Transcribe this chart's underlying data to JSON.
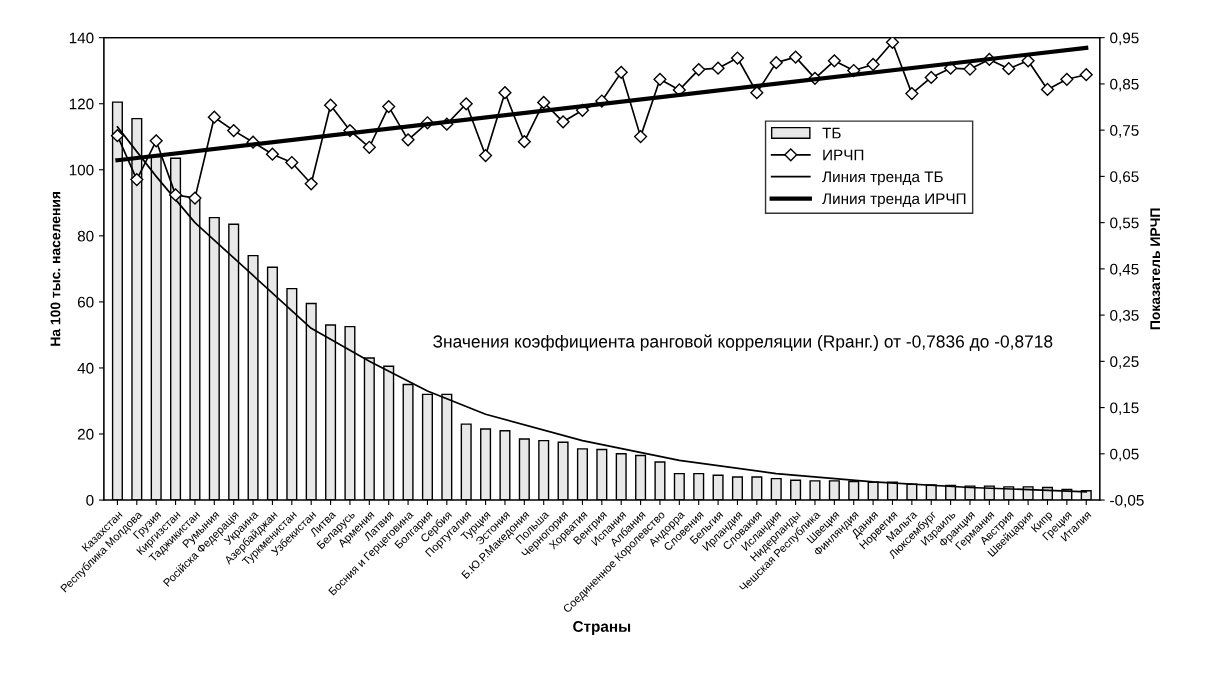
{
  "chart_data": {
    "type": "bar",
    "xlabel": "Страны",
    "ylabel": "На 100 тыс. населения",
    "y2label": "Показатель ИРЧП",
    "categories": [
      "Казахстан",
      "Республика Молдова",
      "Грузия",
      "Киргизстан",
      "Таджикистан",
      "Румыния",
      "Російска Федерація",
      "Украина",
      "Азербайджан",
      "Туркменистан",
      "Узбекистан",
      "Литва",
      "Беларусь",
      "Армения",
      "Латвия",
      "Босния и Герцеговина",
      "Болгария",
      "Сербия",
      "Португалия",
      "Турция",
      "Эстония",
      "Б.Ю.Р.Македония",
      "Польша",
      "Черногория",
      "Хорватия",
      "Венгрия",
      "Испания",
      "Албания",
      "Соединенное Королевство",
      "Андорра",
      "Словения",
      "Бельгия",
      "Ирландия",
      "Словакия",
      "Исландия",
      "Нидерланды",
      "Чешская Республика",
      "Швеция",
      "Финляндия",
      "Дания",
      "Норвегия",
      "Мальта",
      "Люксембург",
      "Израиль",
      "Франция",
      "Германия",
      "Австрия",
      "Швейцария",
      "Кипр",
      "Греция",
      "Италия"
    ],
    "series": [
      {
        "name": "ТБ",
        "color": "#e8e8e8",
        "values": [
          120.5,
          115.5,
          104,
          103.5,
          91.5,
          85.5,
          83.5,
          74,
          70.5,
          64,
          59.5,
          53,
          52.5,
          43,
          40.5,
          35,
          32,
          32,
          23,
          21.5,
          21,
          18.5,
          18,
          17.5,
          15.5,
          15.3,
          14,
          13.5,
          11.5,
          8,
          8,
          7.5,
          7,
          7,
          6.5,
          6,
          5.8,
          5.8,
          5.6,
          5.4,
          5.4,
          4.8,
          4.6,
          4.4,
          4.2,
          4.2,
          4.0,
          4.0,
          3.8,
          3.2,
          2.8
        ]
      },
      {
        "name": "ИРЧП",
        "type": "line",
        "axis": "y2",
        "color": "#000000",
        "marker": "diamond",
        "values": [
          0.738,
          0.643,
          0.727,
          0.61,
          0.603,
          0.778,
          0.749,
          0.724,
          0.698,
          0.68,
          0.634,
          0.804,
          0.749,
          0.713,
          0.801,
          0.729,
          0.766,
          0.763,
          0.807,
          0.695,
          0.831,
          0.725,
          0.81,
          0.768,
          0.793,
          0.813,
          0.875,
          0.736,
          0.86,
          0.837,
          0.881,
          0.884,
          0.906,
          0.831,
          0.896,
          0.908,
          0.862,
          0.9,
          0.879,
          0.892,
          0.94,
          0.829,
          0.864,
          0.884,
          0.882,
          0.903,
          0.883,
          0.9,
          0.838,
          0.86,
          0.87
        ]
      },
      {
        "name": "Линия тренда ТБ",
        "type": "line",
        "color": "#000000",
        "values": [
          113,
          null,
          98,
          null,
          84,
          null,
          null,
          68,
          null,
          null,
          52,
          null,
          null,
          42,
          null,
          null,
          33,
          null,
          null,
          26,
          null,
          null,
          null,
          null,
          18,
          null,
          null,
          null,
          null,
          12,
          null,
          null,
          null,
          null,
          8,
          null,
          null,
          null,
          null,
          5.5,
          null,
          null,
          null,
          null,
          3.8,
          null,
          null,
          null,
          null,
          null,
          2.5
        ]
      },
      {
        "name": "Линия тренда ИРЧП",
        "type": "line",
        "axis": "y2",
        "color": "#000000",
        "values": [
          0.685,
          null,
          null,
          null,
          null,
          null,
          null,
          null,
          null,
          null,
          null,
          null,
          null,
          null,
          null,
          null,
          null,
          null,
          null,
          null,
          null,
          null,
          null,
          null,
          null,
          null,
          null,
          null,
          null,
          null,
          null,
          null,
          null,
          null,
          null,
          null,
          null,
          null,
          null,
          null,
          null,
          null,
          null,
          null,
          null,
          null,
          null,
          null,
          null,
          null,
          0.928
        ]
      }
    ],
    "ylim": [
      0,
      140
    ],
    "yticks": [
      0,
      20,
      40,
      60,
      80,
      100,
      120,
      140
    ],
    "y2lim": [
      -0.05,
      0.95
    ],
    "y2ticks": [
      {
        "value": -0.05,
        "label": "-0,05"
      },
      {
        "value": 0.05,
        "label": "0,05"
      },
      {
        "value": 0.15,
        "label": "0,15"
      },
      {
        "value": 0.25,
        "label": "0,25"
      },
      {
        "value": 0.35,
        "label": "0,35"
      },
      {
        "value": 0.45,
        "label": "0,45"
      },
      {
        "value": 0.55,
        "label": "0,55"
      },
      {
        "value": 0.65,
        "label": "0,65"
      },
      {
        "value": 0.75,
        "label": "0,75"
      },
      {
        "value": 0.85,
        "label": "0,85"
      },
      {
        "value": 0.95,
        "label": "0,95"
      }
    ],
    "annotations": [
      "Значения коэффициента ранговой корреляции (Rранг.) от -0,7836 до -0,8718"
    ],
    "legend": "right",
    "grid": false
  }
}
